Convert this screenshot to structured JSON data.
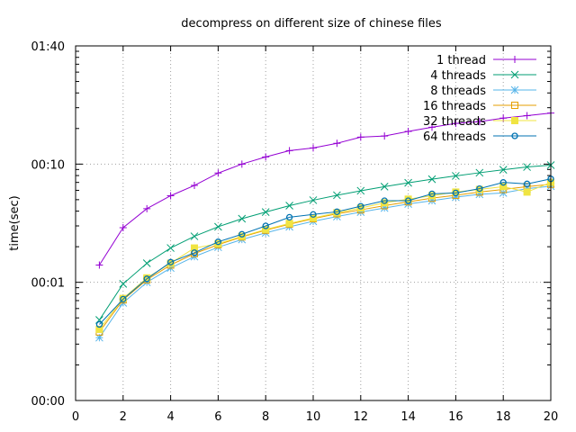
{
  "chart_data": {
    "type": "line",
    "title": "decompress on different size of chinese files",
    "xlabel": "",
    "ylabel": "time(sec)",
    "xlim": [
      0,
      20
    ],
    "ylim": [
      0.1,
      100
    ],
    "y_scale": "log",
    "x_ticks": [
      0,
      2,
      4,
      6,
      8,
      10,
      12,
      14,
      16,
      18,
      20
    ],
    "y_ticks": [
      {
        "value": 0.1,
        "label": "00:00"
      },
      {
        "value": 1,
        "label": "00:01"
      },
      {
        "value": 10,
        "label": "00:10"
      },
      {
        "value": 100,
        "label": "01:40"
      }
    ],
    "grid": true,
    "legend_position": "top-right",
    "x": [
      1,
      2,
      3,
      4,
      5,
      6,
      7,
      8,
      9,
      10,
      11,
      12,
      13,
      14,
      15,
      16,
      17,
      18,
      19,
      20
    ],
    "series": [
      {
        "name": "1 thread",
        "color": "#9400d3",
        "marker": "plus",
        "values": [
          1.4,
          2.9,
          4.2,
          5.4,
          6.6,
          8.4,
          10.0,
          11.5,
          13.0,
          13.7,
          15.0,
          16.9,
          17.3,
          18.9,
          20.5,
          22.1,
          22.9,
          24.5,
          25.7,
          27.0
        ]
      },
      {
        "name": "4 threads",
        "color": "#009e73",
        "marker": "cross",
        "values": [
          0.48,
          0.97,
          1.45,
          1.95,
          2.45,
          2.95,
          3.45,
          3.93,
          4.45,
          4.95,
          5.45,
          5.95,
          6.45,
          6.95,
          7.45,
          7.95,
          8.45,
          8.95,
          9.45,
          9.8
        ]
      },
      {
        "name": "8 threads",
        "color": "#56b4e9",
        "marker": "star",
        "values": [
          0.34,
          0.67,
          1.0,
          1.32,
          1.65,
          1.98,
          2.3,
          2.62,
          2.95,
          3.28,
          3.6,
          3.93,
          4.25,
          4.6,
          4.9,
          5.25,
          5.55,
          5.7,
          6.2,
          6.5
        ]
      },
      {
        "name": "16 threads",
        "color": "#e69f00",
        "marker": "square",
        "values": [
          0.38,
          0.71,
          1.05,
          1.4,
          1.75,
          2.08,
          2.42,
          2.76,
          3.1,
          3.45,
          3.8,
          4.1,
          4.45,
          4.8,
          5.15,
          5.45,
          5.8,
          6.1,
          6.45,
          6.75
        ]
      },
      {
        "name": "32 threads",
        "color": "#f0e442",
        "marker": "filled-square",
        "values": [
          0.4,
          0.73,
          1.09,
          1.45,
          1.95,
          2.12,
          2.45,
          2.8,
          3.15,
          3.5,
          3.88,
          4.25,
          4.7,
          5.05,
          5.4,
          5.8,
          6.1,
          6.45,
          5.8,
          7.0
        ]
      },
      {
        "name": "64 threads",
        "color": "#0072b2",
        "marker": "circle",
        "values": [
          0.44,
          0.72,
          1.07,
          1.48,
          1.78,
          2.2,
          2.55,
          3.0,
          3.55,
          3.75,
          3.95,
          4.4,
          4.9,
          4.9,
          5.6,
          5.7,
          6.2,
          7.0,
          6.8,
          7.5
        ]
      }
    ]
  }
}
